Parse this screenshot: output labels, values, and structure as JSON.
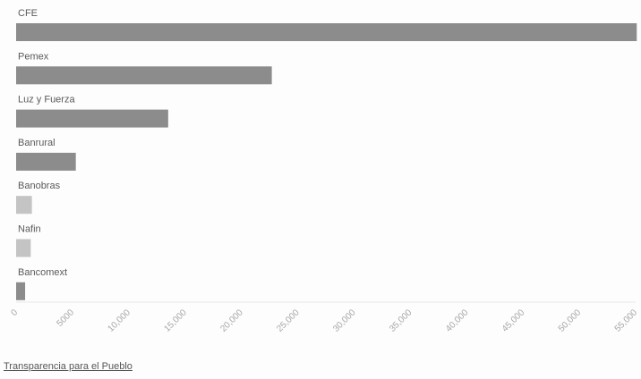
{
  "chart_data": {
    "type": "bar",
    "orientation": "horizontal",
    "categories": [
      "CFE",
      "Pemex",
      "Luz y Fuerza",
      "Banrural",
      "Banobras",
      "Nafin",
      "Bancomext"
    ],
    "values": [
      55100,
      22700,
      13500,
      5300,
      1400,
      1300,
      800
    ],
    "bar_colors": [
      "#8c8c8c",
      "#8c8c8c",
      "#8c8c8c",
      "#8c8c8c",
      "#c4c4c4",
      "#c4c4c4",
      "#8c8c8c"
    ],
    "x_ticks": [
      "0",
      "5000",
      "10,000",
      "15,000",
      "20,000",
      "25,000",
      "30,000",
      "35,000",
      "40,000",
      "45,000",
      "50,000",
      "55,000"
    ],
    "xlim": [
      0,
      55000
    ],
    "title": "",
    "xlabel": "",
    "ylabel": "",
    "grid": false,
    "legend": "none"
  },
  "footer": {
    "source_link": "Transparencia para el Pueblo"
  }
}
